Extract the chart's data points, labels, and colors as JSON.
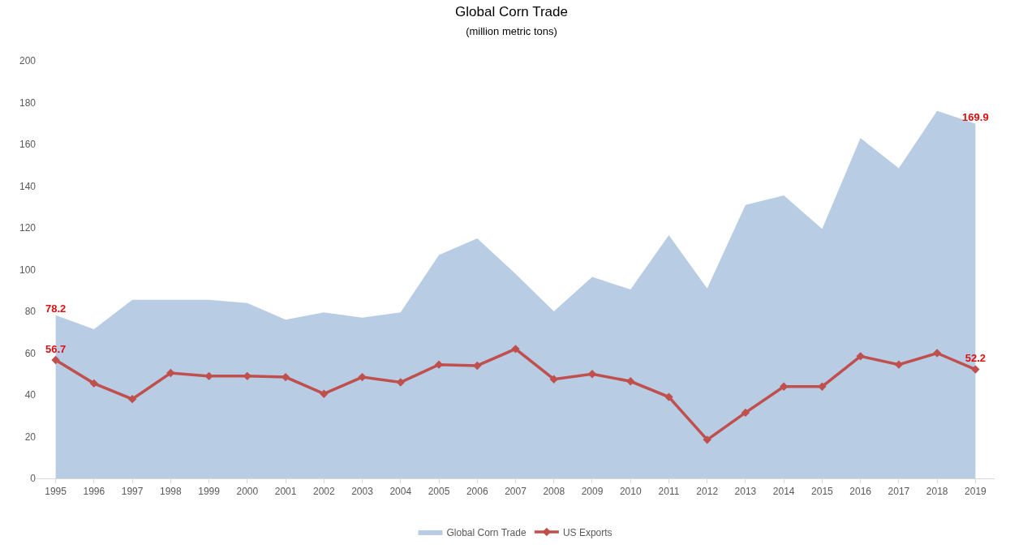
{
  "chart_data": {
    "type": "area",
    "title": "Global Corn Trade",
    "subtitle": "(million metric tons)",
    "categories": [
      "1995",
      "1996",
      "1997",
      "1998",
      "1999",
      "2000",
      "2001",
      "2002",
      "2003",
      "2004",
      "2005",
      "2006",
      "2007",
      "2008",
      "2009",
      "2010",
      "2011",
      "2012",
      "2013",
      "2014",
      "2015",
      "2016",
      "2017",
      "2018",
      "2019"
    ],
    "series": [
      {
        "name": "Global Corn Trade",
        "color": "#b8cce4",
        "values": [
          78.2,
          71.5,
          85.5,
          85.5,
          85.5,
          84,
          76,
          79.5,
          77,
          79.5,
          107,
          115,
          98,
          80,
          96.5,
          90.5,
          116.5,
          91,
          131,
          135.5,
          119.5,
          163,
          148.5,
          176,
          169.9
        ],
        "value_labels": [
          "78.2",
          null,
          null,
          null,
          null,
          null,
          null,
          null,
          null,
          null,
          null,
          null,
          null,
          null,
          null,
          null,
          null,
          null,
          null,
          null,
          null,
          null,
          null,
          null,
          "169.9"
        ]
      },
      {
        "name": "US Exports",
        "type": "line",
        "color": "#c0504d",
        "marker": "diamond",
        "values": [
          56.7,
          45.5,
          38,
          50.5,
          49,
          49,
          48.5,
          40.5,
          48.5,
          46,
          54.5,
          54,
          62,
          47.5,
          50,
          46.5,
          39,
          18.5,
          31.5,
          44,
          44,
          58.5,
          54.5,
          60,
          52.2
        ],
        "value_labels": [
          "56.7",
          null,
          null,
          null,
          null,
          null,
          null,
          null,
          null,
          null,
          null,
          null,
          null,
          null,
          null,
          null,
          null,
          null,
          null,
          null,
          null,
          null,
          null,
          null,
          "52.2"
        ]
      }
    ],
    "ylim": [
      0,
      200
    ],
    "yticks": [
      0,
      20,
      40,
      60,
      80,
      100,
      120,
      140,
      160,
      180,
      200
    ],
    "grid": false,
    "legend": "bottom"
  }
}
